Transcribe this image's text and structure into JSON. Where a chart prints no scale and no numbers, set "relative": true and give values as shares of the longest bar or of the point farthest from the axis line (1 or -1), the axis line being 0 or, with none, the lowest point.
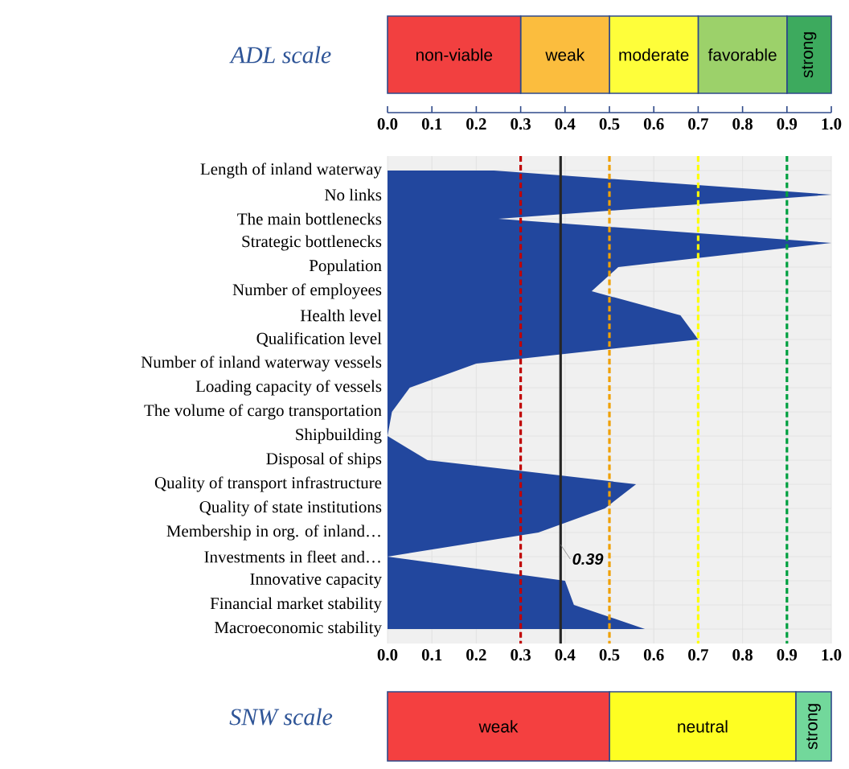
{
  "chart_data": [
    {
      "type": "bar",
      "stacked": true,
      "orientation": "horizontal",
      "title": "ADL scale",
      "categories": [
        null
      ],
      "xlim": [
        0,
        1
      ],
      "xticks": [
        {
          "value": 0,
          "label": "0.0"
        },
        {
          "value": 0.1,
          "label": "0.1"
        },
        {
          "value": 0.2,
          "label": "0.2"
        },
        {
          "value": 0.3,
          "label": "0.3"
        },
        {
          "value": 0.4,
          "label": "0.4"
        },
        {
          "value": 0.5,
          "label": "0.5"
        },
        {
          "value": 0.6,
          "label": "0.6"
        },
        {
          "value": 0.7,
          "label": "0.7"
        },
        {
          "value": 0.8,
          "label": "0.8"
        },
        {
          "value": 0.9,
          "label": "0.9"
        },
        {
          "value": 1,
          "label": "1.0"
        }
      ],
      "tick_labels": "x",
      "series": [
        {
          "name": "non-viable",
          "color": "#f24040",
          "values": [
            0.3
          ]
        },
        {
          "name": "weak",
          "color": "#fbbd3e",
          "values": [
            0.2
          ]
        },
        {
          "name": "moderate",
          "color": "#fefe3a",
          "values": [
            0.2
          ]
        },
        {
          "name": "favorable",
          "color": "#9cd16a",
          "values": [
            0.2
          ]
        },
        {
          "name": "strong",
          "color": "#3daa5e",
          "values": [
            0.1
          ]
        }
      ]
    },
    {
      "type": "area",
      "orientation": "horizontal",
      "color": "#22479e",
      "grid": true,
      "categories": [
        "Length of inland waterway",
        "No links",
        "The main bottlenecks",
        "Strategic bottlenecks",
        "Population",
        "Number of employees",
        "Health level",
        "Qualification level",
        "Number of inland waterway vessels",
        "Loading capacity of vessels",
        "The volume of cargo transportation",
        "Shipbuilding",
        "Disposal of ships",
        "Quality of transport infrastructure",
        "Quality of state institutions",
        "Membership in org. of inland…",
        "Investments in fleet and…",
        "Innovative capacity",
        "Financial market stability",
        "Macroeconomic stability"
      ],
      "values": [
        0.24,
        1.0,
        0.25,
        1.0,
        0.52,
        0.46,
        0.66,
        0.7,
        0.2,
        0.05,
        0.01,
        0.0,
        0.09,
        0.56,
        0.49,
        0.34,
        0.0,
        0.4,
        0.42,
        0.58
      ],
      "xlim": [
        0,
        1
      ],
      "xticks": [
        {
          "value": 0,
          "label": "0.0"
        },
        {
          "value": 0.1,
          "label": "0.1"
        },
        {
          "value": 0.2,
          "label": "0.2"
        },
        {
          "value": 0.3,
          "label": "0.3"
        },
        {
          "value": 0.4,
          "label": "0.4"
        },
        {
          "value": 0.5,
          "label": "0.5"
        },
        {
          "value": 0.6,
          "label": "0.6"
        },
        {
          "value": 0.7,
          "label": "0.7"
        },
        {
          "value": 0.8,
          "label": "0.8"
        },
        {
          "value": 0.9,
          "label": "0.9"
        },
        {
          "value": 1,
          "label": "1.0"
        }
      ],
      "ref_lines": [
        {
          "axis": "x",
          "value": 0.3,
          "color": "#c00000",
          "line_style": "dashed"
        },
        {
          "axis": "x",
          "value": 0.39,
          "label": "0.39",
          "color": "#262626",
          "line_style": "solid"
        },
        {
          "axis": "x",
          "value": 0.5,
          "color": "#f0a000",
          "line_style": "dashed"
        },
        {
          "axis": "x",
          "value": 0.7,
          "color": "#ffff00",
          "line_style": "dashed"
        },
        {
          "axis": "x",
          "value": 0.9,
          "color": "#00a040",
          "line_style": "dashed"
        }
      ]
    },
    {
      "type": "bar",
      "stacked": true,
      "orientation": "horizontal",
      "title": "SNW scale",
      "categories": [
        null
      ],
      "relative": true,
      "series": [
        {
          "name": "weak",
          "color": "#f44040",
          "values": [
            0.5
          ]
        },
        {
          "name": "neutral",
          "color": "#fefe22",
          "values": [
            0.42
          ]
        },
        {
          "name": "strong",
          "color": "#72d89b",
          "values": [
            0.08
          ]
        }
      ]
    }
  ]
}
